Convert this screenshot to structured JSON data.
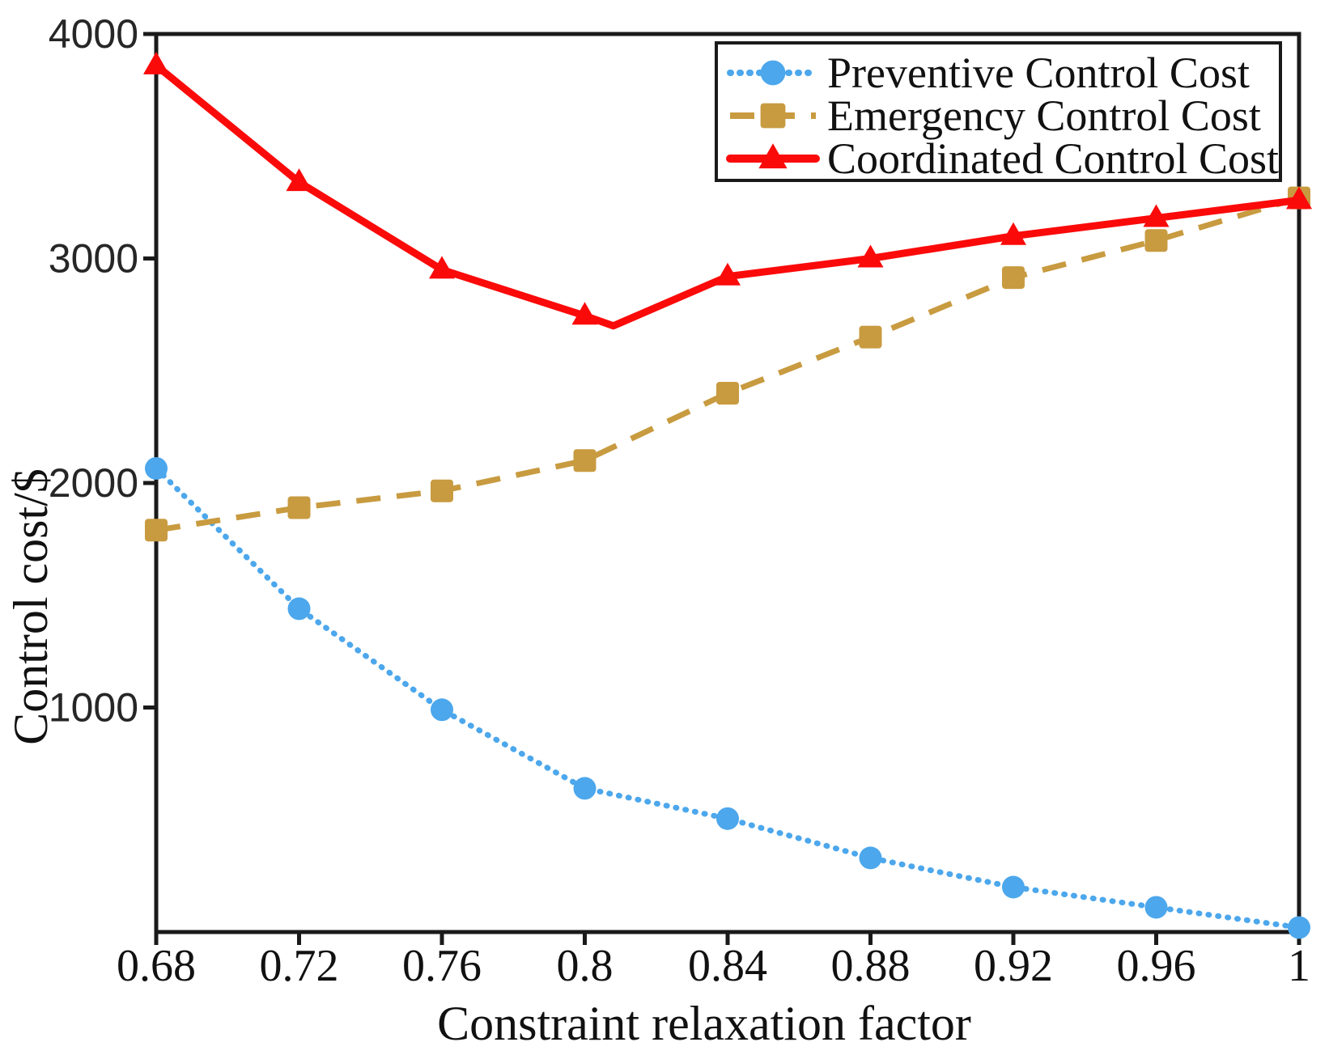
{
  "chart_data": {
    "type": "line",
    "title": "",
    "xlabel": "Constraint relaxation factor",
    "ylabel": "Control cost/$",
    "x": [
      0.68,
      0.72,
      0.76,
      0.8,
      0.84,
      0.88,
      0.92,
      0.96,
      1
    ],
    "x_tick_labels": [
      "0.68",
      "0.72",
      "0.76",
      "0.8",
      "0.84",
      "0.88",
      "0.92",
      "0.96",
      "1"
    ],
    "y_ticks": [
      1000,
      2000,
      3000,
      4000
    ],
    "y_tick_labels": [
      "1000",
      "2000",
      "3000",
      "4000"
    ],
    "xlim": [
      0.68,
      1.0
    ],
    "ylim": [
      0,
      4000
    ],
    "grid": false,
    "legend_position": "top-right-inside",
    "axis_color": "#1a1a1a",
    "series": [
      {
        "name": "Preventive Control Cost",
        "slug": "preventive",
        "color": "#4ca7ec",
        "line_style": "dotted",
        "marker": "circle",
        "values": [
          2065,
          1440,
          990,
          640,
          505,
          330,
          200,
          110,
          20
        ]
      },
      {
        "name": "Emergency Control Cost",
        "slug": "emergency",
        "color": "#c89b40",
        "line_style": "dashed",
        "marker": "square",
        "values": [
          1790,
          1890,
          1965,
          2100,
          2400,
          2650,
          2915,
          3080,
          3270
        ]
      },
      {
        "name": "Coordinated Control Cost",
        "slug": "coordinated",
        "color": "#fb0a0a",
        "line_style": "solid",
        "marker": "triangle",
        "values": [
          3860,
          3340,
          2950,
          2745,
          2920,
          3000,
          3100,
          3180,
          3260
        ],
        "extra_line_vertex": {
          "x": 0.808,
          "value": 2700
        }
      }
    ]
  }
}
